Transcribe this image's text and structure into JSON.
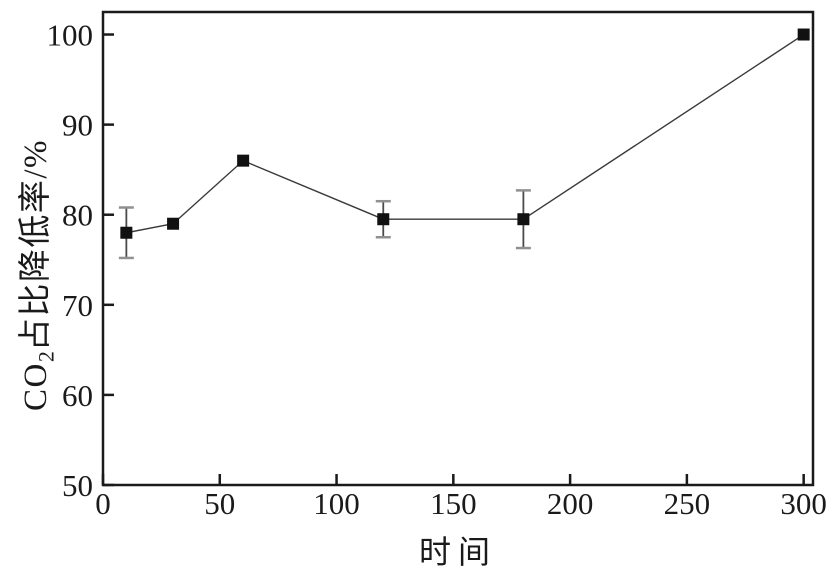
{
  "figure": {
    "background_color": "#ffffff",
    "text_color": "#1a1a1a",
    "frame_color": "#1a1a1a"
  },
  "chart_data": {
    "type": "line",
    "title": "",
    "grid": false,
    "legend": false,
    "x_axis": {
      "label": "时间",
      "ticks": [
        0,
        50,
        100,
        150,
        200,
        250,
        300
      ],
      "range": [
        0,
        304
      ]
    },
    "y_axis": {
      "label": "CO2占比降低率/%",
      "label_prefix": "CO",
      "label_sub": "2",
      "label_suffix": "占比降低率/%",
      "ticks": [
        50,
        60,
        70,
        80,
        90,
        100
      ],
      "range": [
        50,
        102.5
      ]
    },
    "series": [
      {
        "marker": "square",
        "marker_color": "#111111",
        "marker_size": 12,
        "line_color": "#3a3a3a",
        "error_line_color": "#4a4a4a",
        "error_cap_color": "#909090",
        "points": [
          {
            "x": 10,
            "y": 78,
            "yerr": 2.8
          },
          {
            "x": 30,
            "y": 79,
            "yerr": null
          },
          {
            "x": 60,
            "y": 86,
            "yerr": null
          },
          {
            "x": 120,
            "y": 79.5,
            "yerr": 2.0
          },
          {
            "x": 180,
            "y": 79.5,
            "yerr": 3.2
          },
          {
            "x": 300,
            "y": 100,
            "yerr": null
          }
        ]
      }
    ]
  }
}
